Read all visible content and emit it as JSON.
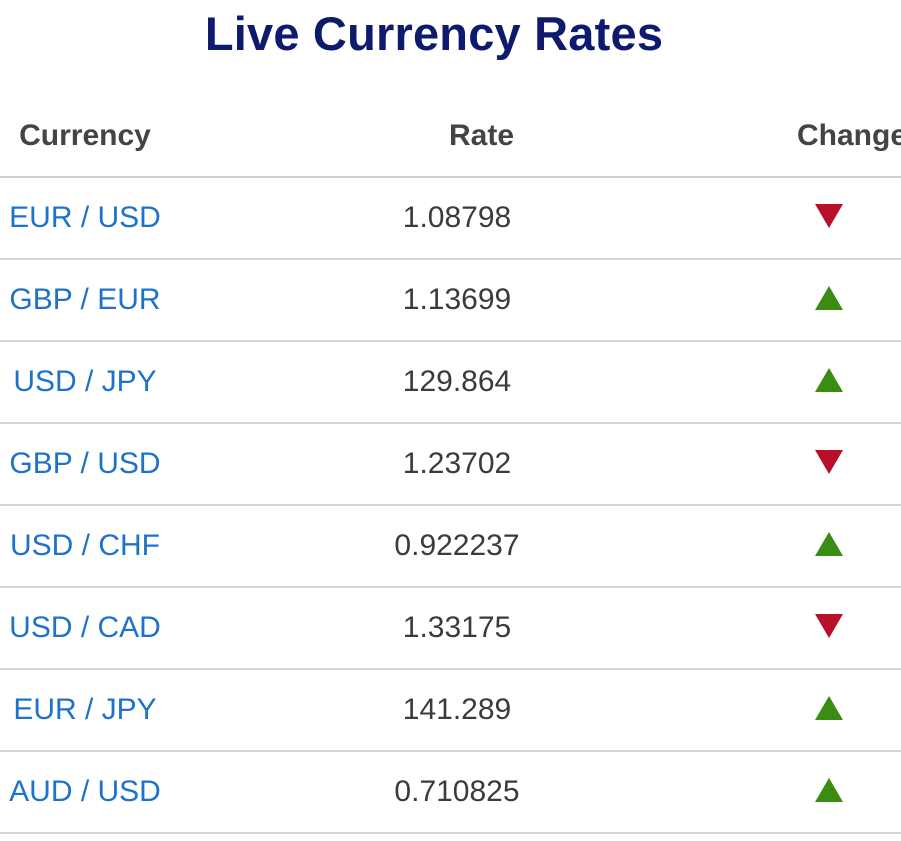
{
  "page": {
    "title": "Live Currency Rates"
  },
  "table": {
    "headers": {
      "currency": "Currency",
      "rate": "Rate",
      "change": "Change"
    },
    "rows": [
      {
        "pair": "EUR / USD",
        "rate": "1.08798",
        "change": "down"
      },
      {
        "pair": "GBP / EUR",
        "rate": "1.13699",
        "change": "up"
      },
      {
        "pair": "USD / JPY",
        "rate": "129.864",
        "change": "up"
      },
      {
        "pair": "GBP / USD",
        "rate": "1.23702",
        "change": "down"
      },
      {
        "pair": "USD / CHF",
        "rate": "0.922237",
        "change": "up"
      },
      {
        "pair": "USD / CAD",
        "rate": "1.33175",
        "change": "down"
      },
      {
        "pair": "EUR / JPY",
        "rate": "141.289",
        "change": "up"
      },
      {
        "pair": "AUD / USD",
        "rate": "0.710825",
        "change": "up"
      }
    ]
  },
  "colors": {
    "title": "#0d1a6e",
    "link": "#1e73c8",
    "up": "#3a8c12",
    "down": "#b8102a"
  },
  "icons": {
    "up": "triangle-up-icon",
    "down": "triangle-down-icon"
  }
}
